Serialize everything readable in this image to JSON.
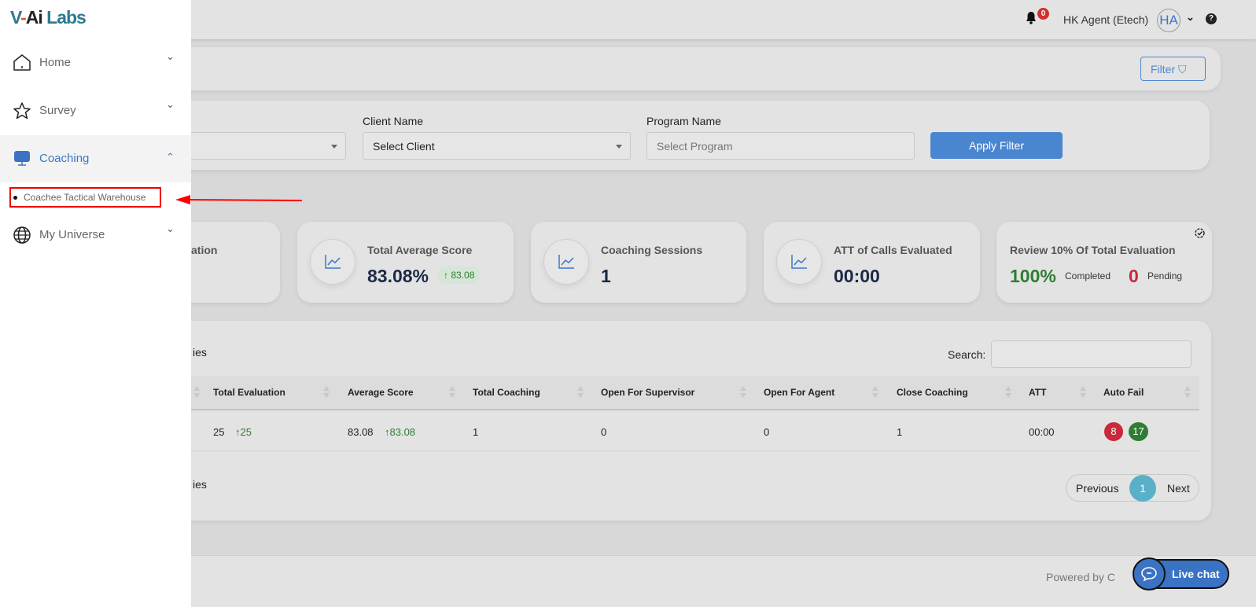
{
  "brand": {
    "logo_text": "V-Ai Labs"
  },
  "header": {
    "notification_count": "0",
    "user_name": "HK Agent (Etech)",
    "avatar_initials": "HA"
  },
  "toolbar": {
    "filter_label": "Filter"
  },
  "filters": {
    "client_label": "Client Name",
    "client_value": "Select Client",
    "program_label": "Program Name",
    "program_placeholder": "Select Program",
    "apply_label": "Apply Filter"
  },
  "sidebar": {
    "items": [
      {
        "label": "Home",
        "icon": "home-icon"
      },
      {
        "label": "Survey",
        "icon": "star-icon"
      },
      {
        "label": "Coaching",
        "icon": "monitor-icon",
        "active": true
      },
      {
        "label": "Coachee Tactical Warehouse",
        "sub": true
      },
      {
        "label": "My Universe",
        "icon": "globe-icon"
      }
    ],
    "active_color": "#3a78c9"
  },
  "stats": [
    {
      "title": "ation"
    },
    {
      "title": "Total Average Score",
      "value": "83.08%",
      "delta": "83.08"
    },
    {
      "title": "Coaching Sessions",
      "value": "1"
    },
    {
      "title": "ATT of Calls Evaluated",
      "value": "00:00"
    },
    {
      "title": "Review 10% Of Total Evaluation",
      "completed_value": "100%",
      "completed_label": "Completed",
      "pending_value": "0",
      "pending_label": "Pending"
    }
  ],
  "table": {
    "entries_top": "ies",
    "entries_bottom": "ies",
    "search_label": "Search:",
    "search_value": "",
    "columns": [
      "Total Evaluation",
      "Average Score",
      "Total Coaching",
      "Open For Supervisor",
      "Open For Agent",
      "Close Coaching",
      "ATT",
      "Auto Fail"
    ],
    "rows": [
      {
        "total_evaluation": "25",
        "total_evaluation_delta": "25",
        "average_score": "83.08",
        "average_score_delta": "83.08",
        "total_coaching": "1",
        "open_supervisor": "0",
        "open_agent": "0",
        "close_coaching": "1",
        "att": "00:00",
        "auto_fail_red": "8",
        "auto_fail_green": "17"
      }
    ],
    "pagination": {
      "previous": "Previous",
      "current": "1",
      "next": "Next"
    }
  },
  "footer": {
    "powered_by": "Powered by C"
  },
  "livechat": {
    "label": "Live chat"
  },
  "colors": {
    "primary": "#4a86d0",
    "success": "#2e7d32",
    "danger": "#c62a3b",
    "page_active": "#5aafc9"
  }
}
